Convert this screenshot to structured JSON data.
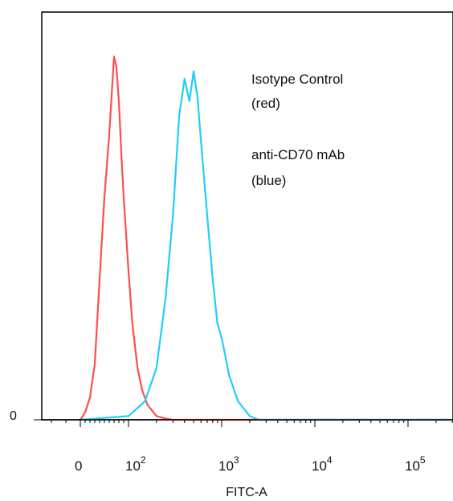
{
  "chart_data": {
    "type": "line",
    "title": "",
    "xlabel": "FITC-A",
    "ylabel": "",
    "x_scale": "biexponential",
    "xlim": [
      -30,
      300000
    ],
    "ylim": [
      0,
      1.1
    ],
    "grid": false,
    "y_ticks": [
      {
        "value": 0,
        "label": "0"
      }
    ],
    "x_ticks": [
      {
        "value": 0,
        "label": "0",
        "exp": ""
      },
      {
        "value": 100,
        "label": "10",
        "exp": "2"
      },
      {
        "value": 1000,
        "label": "10",
        "exp": "3"
      },
      {
        "value": 10000,
        "label": "10",
        "exp": "4"
      },
      {
        "value": 100000,
        "label": "10",
        "exp": "5"
      }
    ],
    "annotations": [
      {
        "line1": "Isotype Control",
        "line2": "(red)"
      },
      {
        "line1": "anti-CD70 mAb",
        "line2": "(blue)"
      }
    ],
    "series": [
      {
        "color": "#ff4d4d",
        "x": [
          0,
          10,
          20,
          30,
          40,
          50,
          60,
          70,
          75,
          80,
          85,
          90,
          100,
          110,
          125,
          140,
          160,
          200,
          250,
          300,
          400,
          600,
          1000,
          10000,
          300000
        ],
        "y": [
          0,
          0.02,
          0.06,
          0.15,
          0.38,
          0.6,
          0.77,
          0.98,
          0.95,
          0.86,
          0.72,
          0.6,
          0.4,
          0.26,
          0.14,
          0.08,
          0.04,
          0.01,
          0.003,
          0,
          0,
          0,
          0,
          0,
          0
        ]
      },
      {
        "color": "#22ccff",
        "x": [
          0,
          100,
          150,
          200,
          250,
          300,
          350,
          400,
          450,
          500,
          550,
          600,
          700,
          800,
          900,
          1000,
          1100,
          1200,
          1500,
          2000,
          2500,
          3000,
          10000,
          300000
        ],
        "y": [
          0,
          0.01,
          0.05,
          0.14,
          0.33,
          0.55,
          0.82,
          0.92,
          0.86,
          0.94,
          0.87,
          0.75,
          0.55,
          0.38,
          0.26,
          0.22,
          0.17,
          0.12,
          0.05,
          0.01,
          0,
          0,
          0,
          0
        ]
      }
    ]
  }
}
